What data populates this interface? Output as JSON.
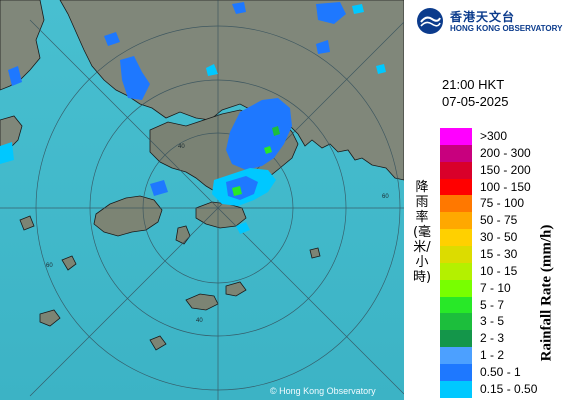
{
  "header": {
    "org_name_zh": "香港天文台",
    "org_name_en": "HONG KONG OBSERVATORY"
  },
  "timestamp": {
    "time": "21:00 HKT",
    "date": "07-05-2025"
  },
  "legend": {
    "title_en": "Rainfall Rate (mm/h)",
    "title_zh": "降雨率(毫米/小時)",
    "items": [
      {
        "label": ">300",
        "color": "#ff00ff"
      },
      {
        "label": "200 - 300",
        "color": "#c8007e"
      },
      {
        "label": "150 - 200",
        "color": "#d9002a"
      },
      {
        "label": "100 - 150",
        "color": "#ff0000"
      },
      {
        "label": "75 - 100",
        "color": "#ff7800"
      },
      {
        "label": "50 - 75",
        "color": "#ffa800"
      },
      {
        "label": "30 - 50",
        "color": "#ffd000"
      },
      {
        "label": "15 - 30",
        "color": "#dcdc00"
      },
      {
        "label": "10 - 15",
        "color": "#b4f000"
      },
      {
        "label": "7 - 10",
        "color": "#78ff00"
      },
      {
        "label": "5 - 7",
        "color": "#28e828"
      },
      {
        "label": "3 - 5",
        "color": "#1cbe3c"
      },
      {
        "label": "2 - 3",
        "color": "#14964a"
      },
      {
        "label": "1 - 2",
        "color": "#4ca0ff"
      },
      {
        "label": "0.50 - 1",
        "color": "#1e78ff"
      },
      {
        "label": "0.15 - 0.50",
        "color": "#00c8ff"
      }
    ]
  },
  "map": {
    "range_ring_labels": [
      "40",
      "60",
      "60",
      "40"
    ],
    "copyright": "© Hong Kong Observatory"
  },
  "colors": {
    "sea": "#3fb7c8",
    "land": "#7f8678",
    "border": "#1a1a1a",
    "ring": "#34505c"
  }
}
